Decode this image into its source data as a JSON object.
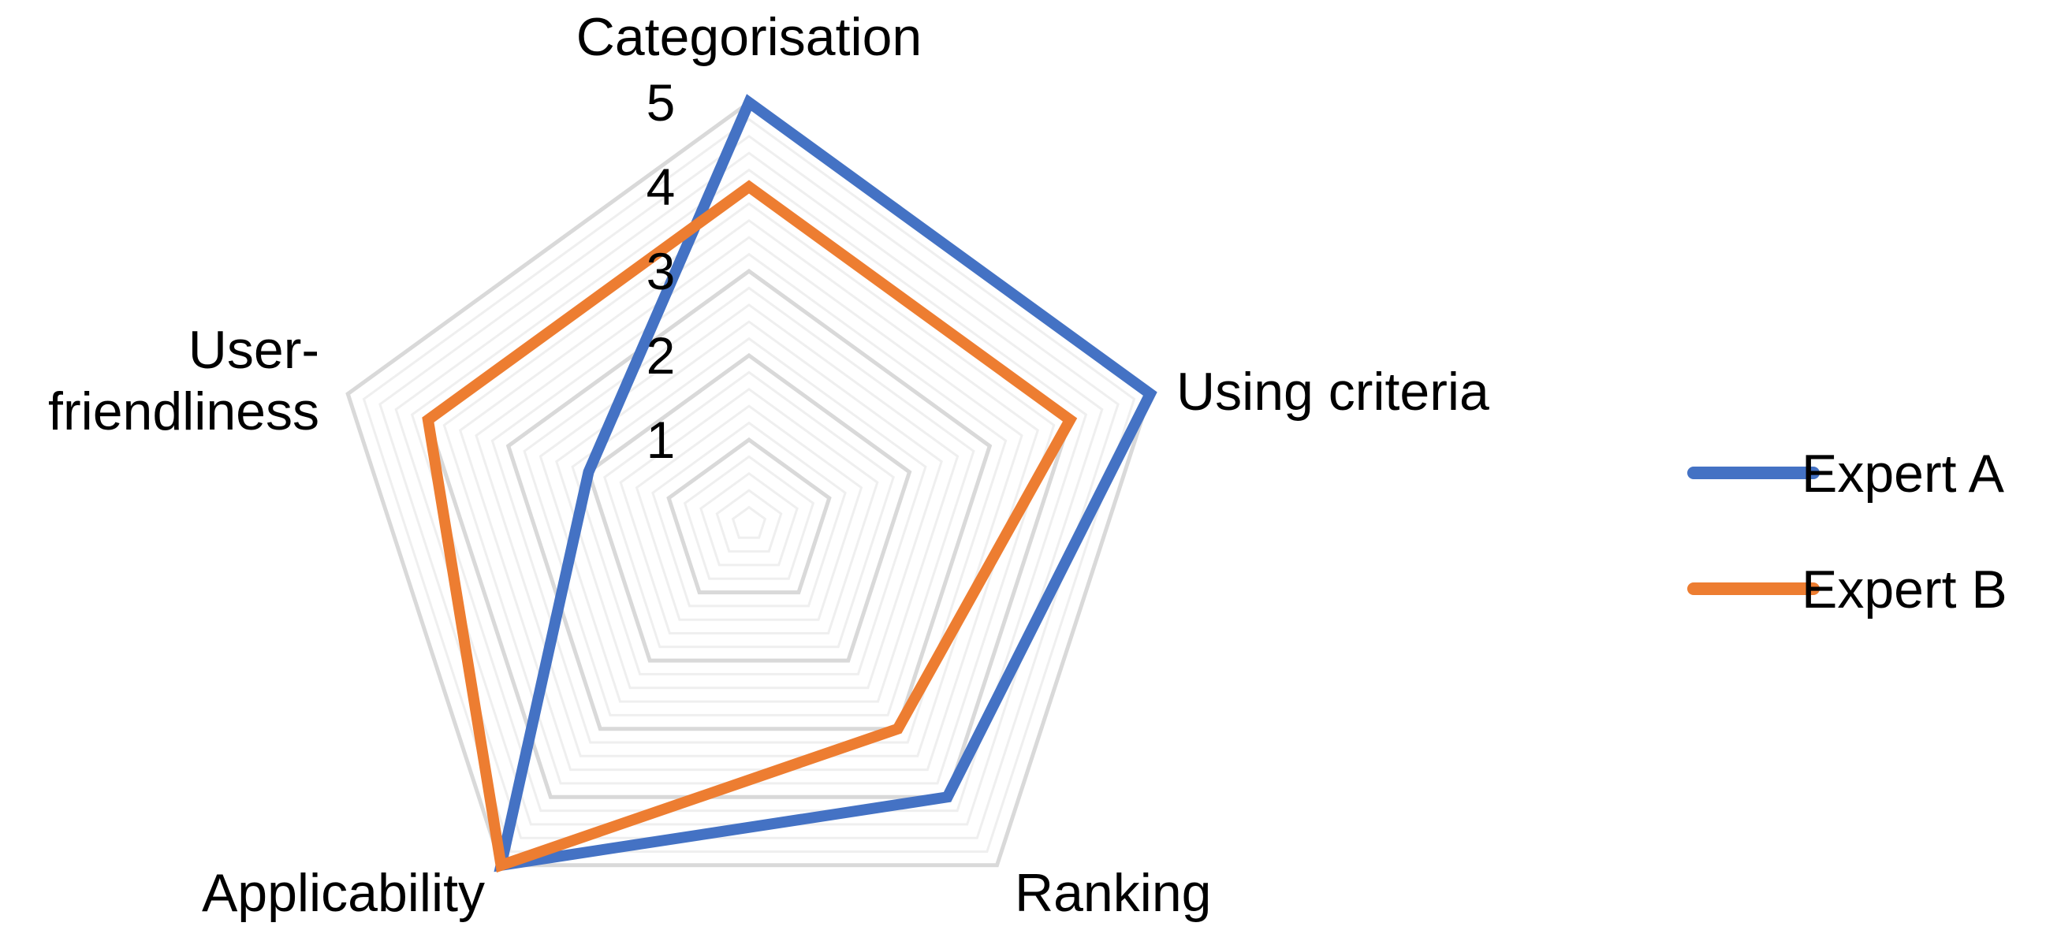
{
  "chart_data": {
    "type": "radar",
    "categories": [
      "Categorisation",
      "Using criteria",
      "Ranking",
      "Applicability",
      "User-friendliness"
    ],
    "category_label_lines": [
      [
        "Categorisation"
      ],
      [
        "Using criteria"
      ],
      [
        "Ranking"
      ],
      [
        "Applicability"
      ],
      [
        "User-",
        "friendliness"
      ]
    ],
    "series": [
      {
        "name": "Expert A",
        "values": [
          5,
          5,
          4,
          5,
          2
        ],
        "color": "#4472C4"
      },
      {
        "name": "Expert B",
        "values": [
          4,
          4,
          3,
          5,
          4
        ],
        "color": "#ED7D31"
      }
    ],
    "rlim": [
      0,
      5
    ],
    "major_ticks": [
      1,
      2,
      3,
      4,
      5
    ],
    "minor_step": 0.2,
    "grid": true,
    "grid_color": "#D9D9D9",
    "minor_grid_color": "#EFEFEF",
    "legend": "right"
  }
}
